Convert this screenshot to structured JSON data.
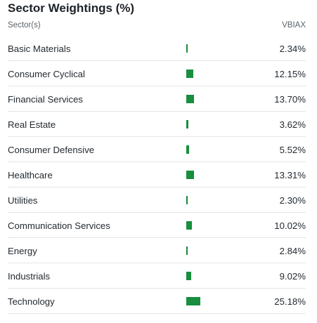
{
  "title": "Sector Weightings (%)",
  "columns": {
    "sector": "Sector(s)",
    "fund": "VBIAX"
  },
  "colors": {
    "bar": "#188e3e",
    "divider": "#e3e5e8"
  },
  "rows": [
    {
      "name": "Basic Materials",
      "value": "2.34%",
      "weight": 2.34
    },
    {
      "name": "Consumer Cyclical",
      "value": "12.15%",
      "weight": 12.15
    },
    {
      "name": "Financial Services",
      "value": "13.70%",
      "weight": 13.7
    },
    {
      "name": "Real Estate",
      "value": "3.62%",
      "weight": 3.62
    },
    {
      "name": "Consumer Defensive",
      "value": "5.52%",
      "weight": 5.52
    },
    {
      "name": "Healthcare",
      "value": "13.31%",
      "weight": 13.31
    },
    {
      "name": "Utilities",
      "value": "2.30%",
      "weight": 2.3
    },
    {
      "name": "Communication Services",
      "value": "10.02%",
      "weight": 10.02
    },
    {
      "name": "Energy",
      "value": "2.84%",
      "weight": 2.84
    },
    {
      "name": "Industrials",
      "value": "9.02%",
      "weight": 9.02
    },
    {
      "name": "Technology",
      "value": "25.18%",
      "weight": 25.18
    }
  ]
}
